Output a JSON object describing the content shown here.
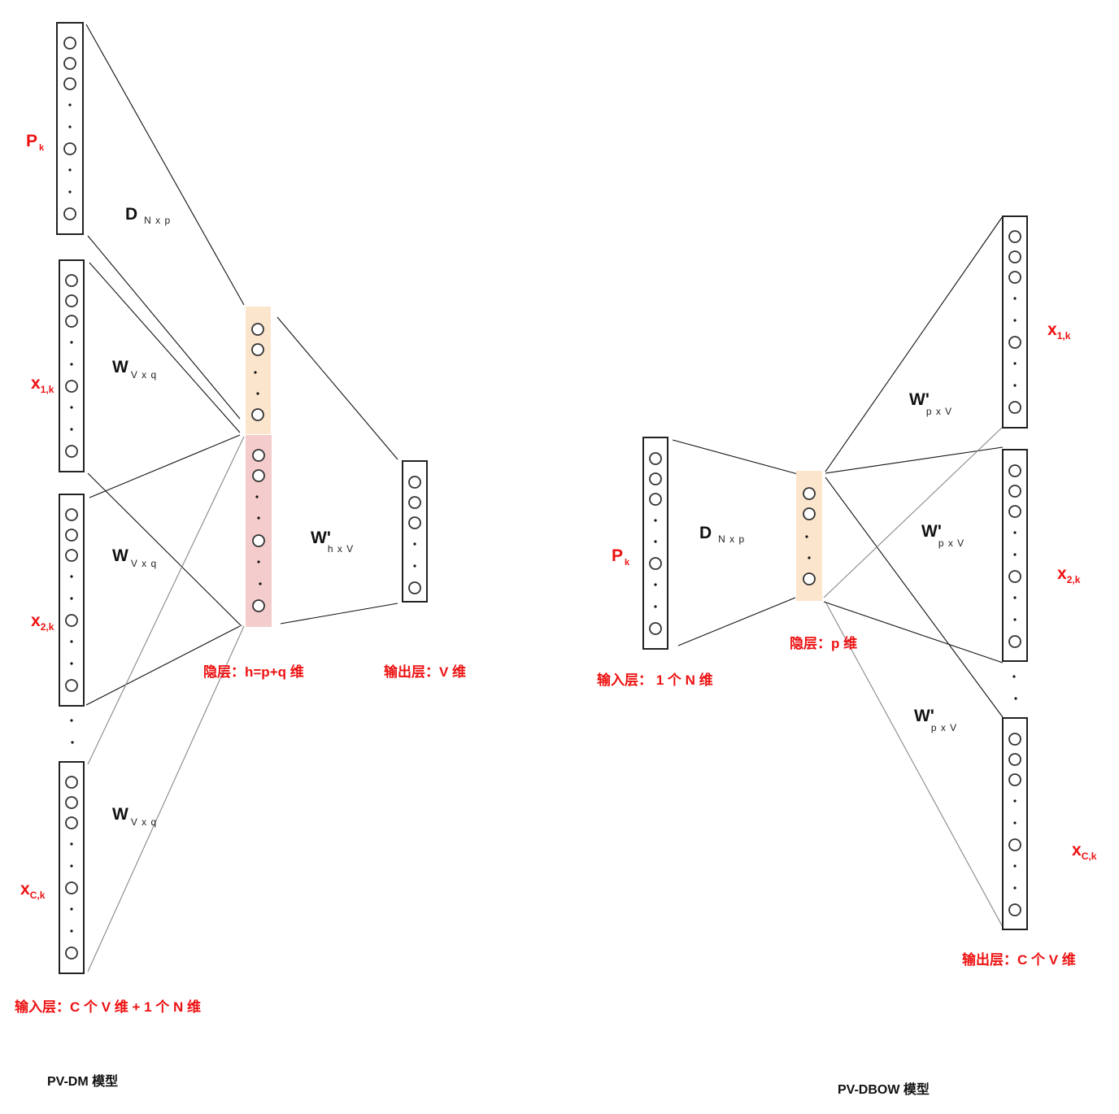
{
  "pvdm": {
    "title": "PV-DM 模型",
    "input_caption": "输入层：C 个 V 维 + 1 个 N 维",
    "hidden_caption": "隐层：h=p+q 维",
    "output_caption": "输出层：V 维",
    "label_pk": "P",
    "label_pk_sub": "k",
    "label_x1": "x",
    "label_x1_sub": "1,k",
    "label_x2": "x",
    "label_x2_sub": "2,k",
    "label_xc": "x",
    "label_xc_sub": "C,k",
    "w_D": "D",
    "w_D_sub": "N x p",
    "w_W": "W",
    "w_W_sub": "V x q",
    "w_Wp": "W'",
    "w_Wp_sub": "h x V"
  },
  "pvdbow": {
    "title": "PV-DBOW 模型",
    "input_caption": "输入层： 1 个 N 维",
    "hidden_caption": "隐层：p  维",
    "output_caption": "输出层：C 个 V 维",
    "label_pk": "P",
    "label_pk_sub": "k",
    "label_x1": "x",
    "label_x1_sub": "1,k",
    "label_x2": "x",
    "label_x2_sub": "2,k",
    "label_xc": "x",
    "label_xc_sub": "C,k",
    "w_D": "D",
    "w_D_sub": "N x p",
    "w_Wp": "W'",
    "w_Wp_sub": "p x V"
  },
  "colors": {
    "label_red": "#ee1111",
    "hidden_top_fill": "#fce5cd",
    "hidden_bottom_fill": "#f4cccc",
    "stroke": "#222222"
  },
  "icons": {
    "neuron": "circle-icon",
    "dot": "ellipsis-dot"
  }
}
